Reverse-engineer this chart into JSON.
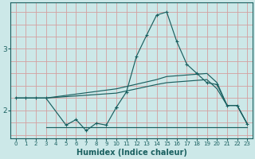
{
  "background_color": "#cce8e8",
  "grid_color": "#d4a0a0",
  "line_color": "#1a6060",
  "xlabel": "Humidex (Indice chaleur)",
  "xlabel_fontsize": 7,
  "yticks": [
    2,
    3
  ],
  "xlim": [
    -0.5,
    23.5
  ],
  "ylim": [
    1.55,
    3.75
  ],
  "x": [
    0,
    1,
    2,
    3,
    4,
    5,
    6,
    7,
    8,
    9,
    10,
    11,
    12,
    13,
    14,
    15,
    16,
    17,
    18,
    19,
    20,
    21,
    22,
    23
  ],
  "zigzag_x": [
    0,
    1,
    2,
    3,
    5,
    6,
    7,
    8,
    9,
    10
  ],
  "zigzag_y": [
    2.2,
    2.2,
    2.2,
    2.2,
    1.76,
    1.85,
    1.67,
    1.79,
    1.76,
    2.05
  ],
  "main_x": [
    10,
    11,
    12,
    13,
    14,
    15,
    16,
    17,
    18,
    19,
    20,
    21,
    22,
    23
  ],
  "main_y": [
    2.05,
    2.3,
    2.88,
    3.22,
    3.55,
    3.6,
    3.12,
    2.75,
    2.6,
    2.45,
    2.42,
    2.08,
    2.08,
    1.78
  ],
  "upper_env_x": [
    0,
    3,
    10,
    14,
    15,
    19,
    20,
    21,
    22,
    23
  ],
  "upper_env_y": [
    2.2,
    2.2,
    2.35,
    2.5,
    2.55,
    2.6,
    2.45,
    2.08,
    2.08,
    1.78
  ],
  "lower_env_x": [
    0,
    3,
    10,
    14,
    15,
    19,
    20,
    21,
    22,
    23
  ],
  "lower_env_y": [
    2.2,
    2.2,
    2.28,
    2.42,
    2.45,
    2.5,
    2.35,
    2.08,
    2.08,
    1.78
  ],
  "flat_x": [
    3,
    10,
    11,
    12,
    13,
    14,
    15,
    16,
    17,
    18,
    19,
    20,
    21,
    22,
    23
  ],
  "flat_y": [
    1.73,
    1.73,
    1.73,
    1.73,
    1.73,
    1.73,
    1.73,
    1.73,
    1.73,
    1.73,
    1.73,
    1.73,
    1.73,
    1.73,
    1.73
  ]
}
